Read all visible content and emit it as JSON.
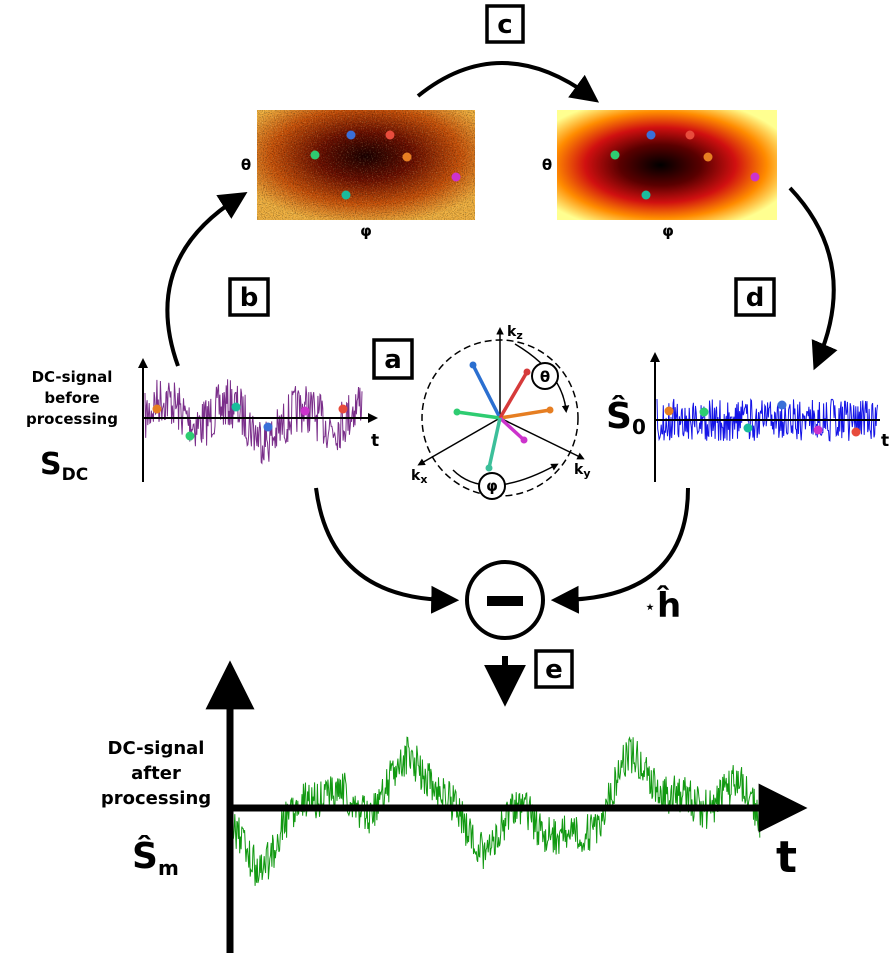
{
  "colors": {
    "raw_signal": "#7a2e8a",
    "clean_signal": "#1414e6",
    "output_signal": "#119911",
    "ink": "#000000",
    "dots": [
      "#e67e22",
      "#2ecc71",
      "#3a6fd8",
      "#8e44ad",
      "#e74c3c",
      "#1abc9c",
      "#cc33cc"
    ]
  },
  "steps": {
    "a": "a",
    "b": "b",
    "c": "c",
    "d": "d",
    "e": "e"
  },
  "maps": {
    "theta": "θ",
    "phi": "φ"
  },
  "input_plot": {
    "caption_line1": "DC-signal",
    "caption_line2": "before",
    "caption_line3": "processing",
    "symbol": "S",
    "subscript": "DC",
    "axis": "t"
  },
  "reference_plot": {
    "symbol": "Ŝ",
    "subscript": "0",
    "axis": "t"
  },
  "orientation": {
    "kx": "k",
    "kx_sub": "x",
    "ky": "k",
    "ky_sub": "y",
    "kz": "k",
    "kz_sub": "z",
    "theta": "θ",
    "phi": "φ"
  },
  "operator": {
    "minus": "−",
    "conv_star": "⋆",
    "kernel": "ĥ"
  },
  "output_plot": {
    "caption_line1": "DC-signal",
    "caption_line2": "after",
    "caption_line3": "processing",
    "symbol": "Ŝ",
    "subscript": "m",
    "axis": "t"
  }
}
